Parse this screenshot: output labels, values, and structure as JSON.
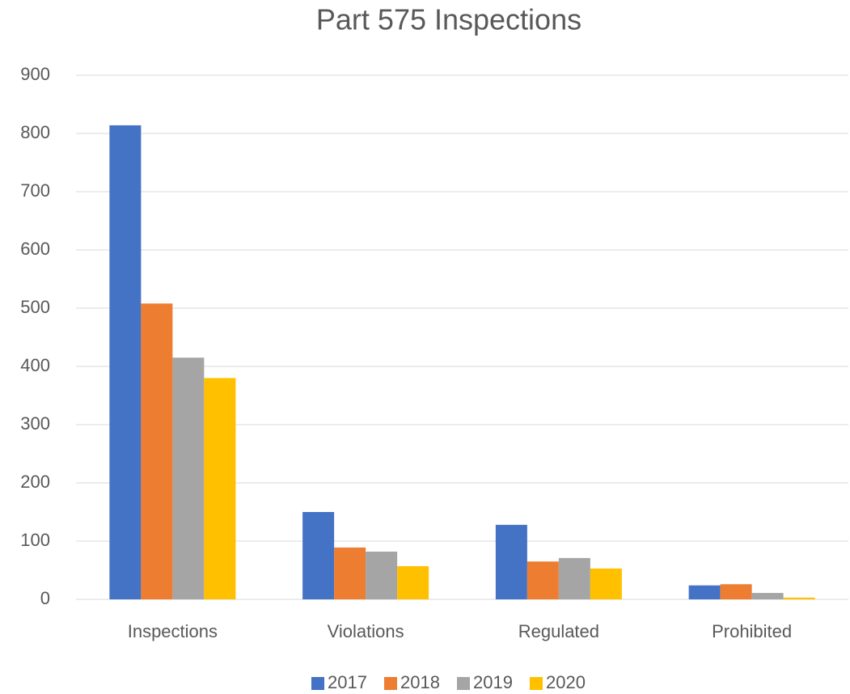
{
  "chart_data": {
    "type": "bar",
    "title": "Part 575 Inspections",
    "categories": [
      "Inspections",
      "Violations",
      "Regulated",
      "Prohibited"
    ],
    "series": [
      {
        "name": "2017",
        "color": "#4472c4",
        "values": [
          814,
          150,
          128,
          24
        ]
      },
      {
        "name": "2018",
        "color": "#ed7d31",
        "values": [
          508,
          89,
          65,
          26
        ]
      },
      {
        "name": "2019",
        "color": "#a5a5a5",
        "values": [
          415,
          82,
          71,
          11
        ]
      },
      {
        "name": "2020",
        "color": "#ffc000",
        "values": [
          380,
          57,
          53,
          3
        ]
      }
    ],
    "ylim": [
      0,
      900
    ],
    "yticks": [
      0,
      100,
      200,
      300,
      400,
      500,
      600,
      700,
      800,
      900
    ],
    "grid": true,
    "legend": "bottom"
  }
}
